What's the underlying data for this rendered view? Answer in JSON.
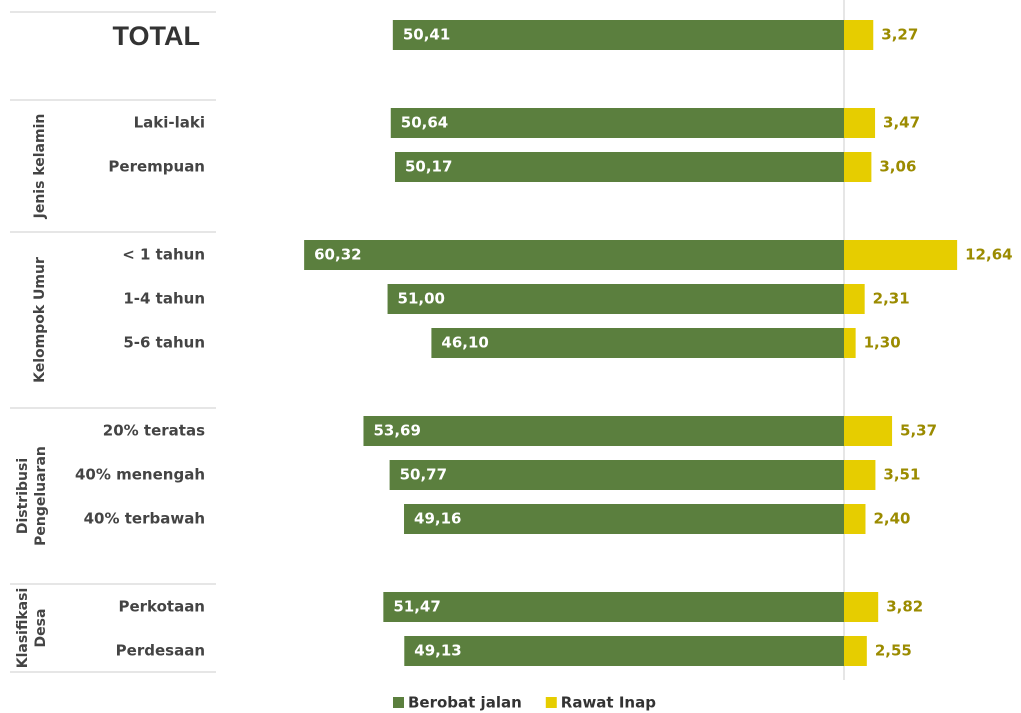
{
  "chart_data": {
    "type": "diverging-bar",
    "categories": [
      "TOTAL",
      "Laki-laki",
      "Perempuan",
      "< 1 tahun",
      "1-4 tahun",
      "5-6 tahun",
      "20% teratas",
      "40% menengah",
      "40% terbawah",
      "Perkotaan",
      "Perdesaan"
    ],
    "groups": [
      {
        "label": [
          "Jenis kelamin"
        ],
        "rows": [
          1,
          2
        ]
      },
      {
        "label": [
          "Kelompok Umur"
        ],
        "rows": [
          3,
          4,
          5
        ]
      },
      {
        "label": [
          "Distribusi",
          "Pengeluaran"
        ],
        "rows": [
          6,
          7,
          8
        ]
      },
      {
        "label": [
          "Klasifikasi",
          "Desa"
        ],
        "rows": [
          9,
          10
        ]
      }
    ],
    "series": [
      {
        "name": "Berobat jalan",
        "color": "#5b7f3e",
        "direction": "left",
        "values": [
          50.41,
          50.64,
          50.17,
          60.32,
          51.0,
          46.1,
          53.69,
          50.77,
          49.16,
          51.47,
          49.13
        ],
        "value_labels": [
          "50,41",
          "50,64",
          "50,17",
          "60,32",
          "51,00",
          "46,10",
          "53,69",
          "50,77",
          "49,16",
          "51,47",
          "49,13"
        ]
      },
      {
        "name": "Rawat Inap",
        "color": "#e6cd00",
        "direction": "right",
        "values": [
          3.27,
          3.47,
          3.06,
          12.64,
          2.31,
          1.3,
          5.37,
          3.51,
          2.4,
          3.82,
          2.55
        ],
        "value_labels": [
          "3,27",
          "3,47",
          "3,06",
          "12,64",
          "2,31",
          "1,30",
          "5,37",
          "3,51",
          "2,40",
          "3,82",
          "2,55"
        ]
      }
    ]
  }
}
